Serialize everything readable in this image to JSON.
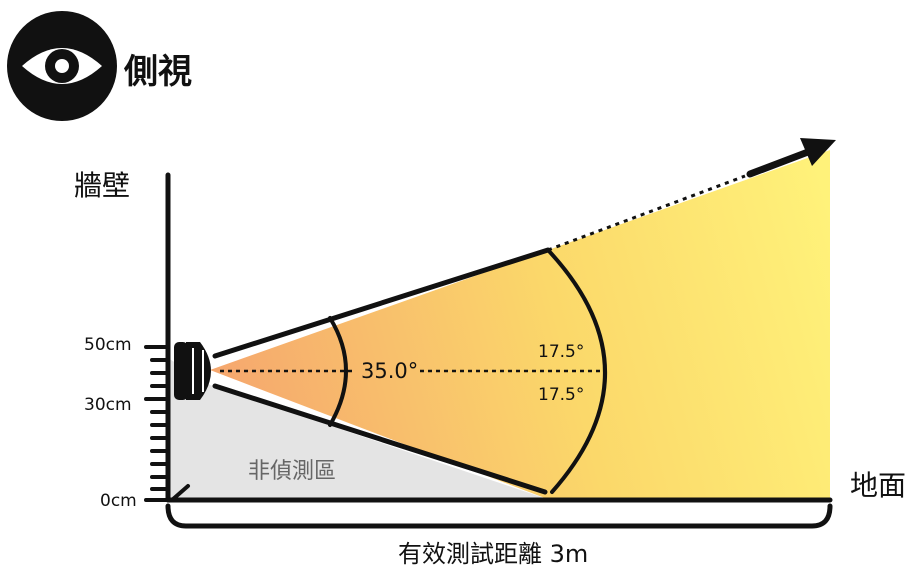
{
  "header": {
    "icon": "eye-icon",
    "title": "側視"
  },
  "axes": {
    "wall_label": "牆壁",
    "ground_label": "地面",
    "ticks": [
      "50cm",
      "30cm",
      "0cm"
    ],
    "distance_label": "有效測試距離 3m"
  },
  "beam": {
    "total_angle": "35.0°",
    "upper_half_angle": "17.5°",
    "lower_half_angle": "17.5°",
    "blind_zone_label": "非偵測區"
  },
  "colors": {
    "beam_near": "#f5a56e",
    "beam_far": "#fff27a",
    "blind_zone": "#e4e4e4",
    "ink": "#111111"
  }
}
